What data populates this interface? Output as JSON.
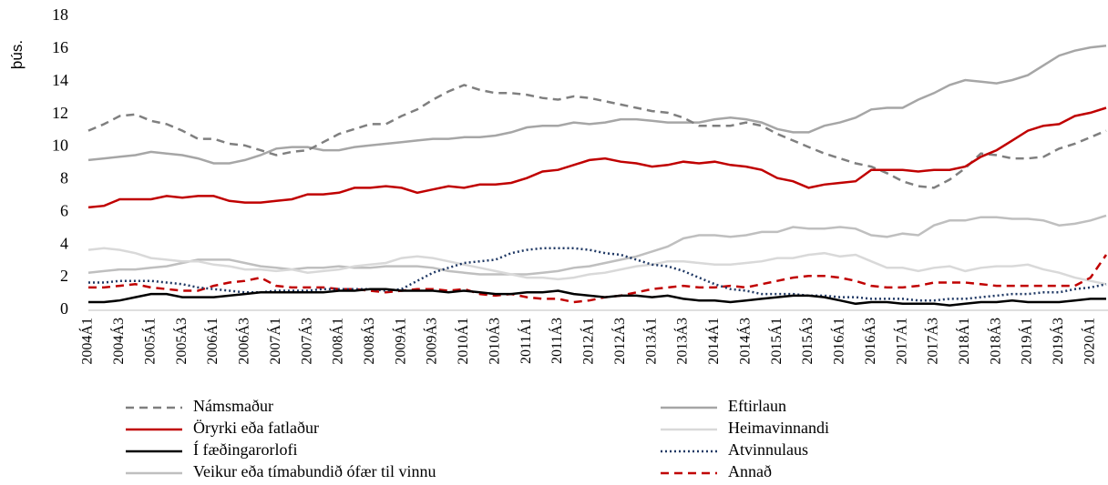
{
  "chart_data": {
    "type": "line",
    "y_label": "þús.",
    "categories": [
      "2004Á1",
      null,
      "2004Á3",
      null,
      "2005Á1",
      null,
      "2005Á3",
      null,
      "2006Á1",
      null,
      "2006Á3",
      null,
      "2007Á1",
      null,
      "2007Á3",
      null,
      "2008Á1",
      null,
      "2008Á3",
      null,
      "2009Á1",
      null,
      "2009Á3",
      null,
      "2010Á1",
      null,
      "2010Á3",
      null,
      "2011Á1",
      null,
      "2011Á3",
      null,
      "2012Á1",
      null,
      "2012Á3",
      null,
      "2013Á1",
      null,
      "2013Á3",
      null,
      "2014Á1",
      null,
      "2014Á3",
      null,
      "2015Á1",
      null,
      "2015Á3",
      null,
      "2016Á1",
      null,
      "2016Á3",
      null,
      "2017Á1",
      null,
      "2017Á3",
      null,
      "2018Á1",
      null,
      "2018Á3",
      null,
      "2019Á1",
      null,
      "2019Á3",
      null,
      "2020Á1",
      null
    ],
    "ylim": [
      0,
      18
    ],
    "yticks": [
      0,
      2,
      4,
      6,
      8,
      10,
      12,
      14,
      16,
      18
    ],
    "grid": false,
    "series": [
      {
        "name": "Námsmaður",
        "color": "#7f7f7f",
        "style": "dashed",
        "values": [
          11.0,
          11.4,
          11.9,
          12.0,
          11.6,
          11.4,
          11.0,
          10.5,
          10.5,
          10.2,
          10.1,
          9.8,
          9.5,
          9.7,
          9.8,
          10.3,
          10.8,
          11.1,
          11.4,
          11.4,
          11.9,
          12.3,
          12.9,
          13.4,
          13.8,
          13.5,
          13.3,
          13.3,
          13.2,
          13.0,
          12.9,
          13.1,
          13.0,
          12.8,
          12.6,
          12.4,
          12.2,
          12.1,
          11.8,
          11.3,
          11.3,
          11.3,
          11.5,
          11.3,
          10.8,
          10.4,
          10.0,
          9.6,
          9.3,
          9.0,
          8.8,
          8.4,
          7.9,
          7.6,
          7.5,
          8.0,
          8.7,
          9.6,
          9.5,
          9.3,
          9.3,
          9.4,
          9.9,
          10.2,
          10.6,
          11.0
        ]
      },
      {
        "name": "Eftirlaun",
        "color": "#a6a6a6",
        "style": "solid",
        "values": [
          9.2,
          9.3,
          9.4,
          9.5,
          9.7,
          9.6,
          9.5,
          9.3,
          9.0,
          9.0,
          9.2,
          9.5,
          9.9,
          10.0,
          10.0,
          9.8,
          9.8,
          10.0,
          10.1,
          10.2,
          10.3,
          10.4,
          10.5,
          10.5,
          10.6,
          10.6,
          10.7,
          10.9,
          11.2,
          11.3,
          11.3,
          11.5,
          11.4,
          11.5,
          11.7,
          11.7,
          11.6,
          11.5,
          11.5,
          11.5,
          11.7,
          11.8,
          11.7,
          11.5,
          11.1,
          10.9,
          10.9,
          11.3,
          11.5,
          11.8,
          12.3,
          12.4,
          12.4,
          12.9,
          13.3,
          13.8,
          14.1,
          14.0,
          13.9,
          14.1,
          14.4,
          15.0,
          15.6,
          15.9,
          16.1,
          16.2
        ]
      },
      {
        "name": "Öryrki eða fatlaður",
        "color": "#c00000",
        "style": "solid",
        "values": [
          6.3,
          6.4,
          6.8,
          6.8,
          6.8,
          7.0,
          6.9,
          7.0,
          7.0,
          6.7,
          6.6,
          6.6,
          6.7,
          6.8,
          7.1,
          7.1,
          7.2,
          7.5,
          7.5,
          7.6,
          7.5,
          7.2,
          7.4,
          7.6,
          7.5,
          7.7,
          7.7,
          7.8,
          8.1,
          8.5,
          8.6,
          8.9,
          9.2,
          9.3,
          9.1,
          9.0,
          8.8,
          8.9,
          9.1,
          9.0,
          9.1,
          8.9,
          8.8,
          8.6,
          8.1,
          7.9,
          7.5,
          7.7,
          7.8,
          7.9,
          8.6,
          8.6,
          8.6,
          8.5,
          8.6,
          8.6,
          8.8,
          9.4,
          9.8,
          10.4,
          11.0,
          11.3,
          11.4,
          11.9,
          12.1,
          12.4
        ]
      },
      {
        "name": "Heimavinnandi",
        "color": "#d9d9d9",
        "style": "solid",
        "values": [
          3.7,
          3.8,
          3.7,
          3.5,
          3.2,
          3.1,
          3.0,
          3.0,
          2.8,
          2.7,
          2.5,
          2.5,
          2.4,
          2.5,
          2.3,
          2.4,
          2.5,
          2.7,
          2.8,
          2.9,
          3.2,
          3.3,
          3.2,
          3.0,
          2.8,
          2.6,
          2.4,
          2.2,
          2.0,
          2.0,
          1.9,
          2.0,
          2.2,
          2.3,
          2.5,
          2.7,
          2.8,
          3.0,
          3.0,
          2.9,
          2.8,
          2.8,
          2.9,
          3.0,
          3.2,
          3.2,
          3.4,
          3.5,
          3.3,
          3.4,
          3.0,
          2.6,
          2.6,
          2.4,
          2.6,
          2.7,
          2.4,
          2.6,
          2.7,
          2.7,
          2.8,
          2.5,
          2.3,
          2.0,
          1.8,
          1.6
        ]
      },
      {
        "name": "Í fæðingarorlofi",
        "color": "#000000",
        "style": "solid",
        "values": [
          0.5,
          0.5,
          0.6,
          0.8,
          1.0,
          1.0,
          0.8,
          0.8,
          0.8,
          0.9,
          1.0,
          1.1,
          1.1,
          1.1,
          1.1,
          1.1,
          1.2,
          1.2,
          1.3,
          1.3,
          1.2,
          1.2,
          1.2,
          1.1,
          1.2,
          1.1,
          1.0,
          1.0,
          1.1,
          1.1,
          1.2,
          1.0,
          0.9,
          0.8,
          0.9,
          0.9,
          0.8,
          0.9,
          0.7,
          0.6,
          0.6,
          0.5,
          0.6,
          0.7,
          0.8,
          0.9,
          0.9,
          0.8,
          0.6,
          0.4,
          0.5,
          0.5,
          0.4,
          0.4,
          0.4,
          0.3,
          0.4,
          0.5,
          0.5,
          0.6,
          0.5,
          0.5,
          0.5,
          0.6,
          0.7,
          0.7
        ]
      },
      {
        "name": "Atvinnulaus",
        "color": "#1f3864",
        "style": "dotted",
        "values": [
          1.7,
          1.7,
          1.8,
          1.8,
          1.8,
          1.7,
          1.6,
          1.4,
          1.3,
          1.2,
          1.1,
          1.1,
          1.2,
          1.2,
          1.2,
          1.3,
          1.3,
          1.3,
          1.3,
          1.2,
          1.3,
          1.8,
          2.3,
          2.6,
          2.9,
          3.0,
          3.1,
          3.5,
          3.7,
          3.8,
          3.8,
          3.8,
          3.7,
          3.5,
          3.4,
          3.1,
          2.8,
          2.7,
          2.4,
          2.0,
          1.6,
          1.3,
          1.2,
          1.0,
          1.0,
          1.0,
          0.9,
          0.9,
          0.8,
          0.8,
          0.7,
          0.7,
          0.7,
          0.6,
          0.6,
          0.7,
          0.7,
          0.8,
          0.9,
          1.0,
          1.0,
          1.1,
          1.1,
          1.3,
          1.4,
          1.6
        ]
      },
      {
        "name": "Veikur eða tímabundið ófær til vinnu",
        "color": "#bfbfbf",
        "style": "solid",
        "values": [
          2.3,
          2.4,
          2.5,
          2.5,
          2.6,
          2.7,
          2.9,
          3.1,
          3.1,
          3.1,
          2.9,
          2.7,
          2.6,
          2.5,
          2.6,
          2.6,
          2.7,
          2.6,
          2.6,
          2.7,
          2.7,
          2.7,
          2.6,
          2.4,
          2.3,
          2.2,
          2.2,
          2.2,
          2.2,
          2.3,
          2.4,
          2.6,
          2.7,
          2.9,
          3.1,
          3.3,
          3.6,
          3.9,
          4.4,
          4.6,
          4.6,
          4.5,
          4.6,
          4.8,
          4.8,
          5.1,
          5.0,
          5.0,
          5.1,
          5.0,
          4.6,
          4.5,
          4.7,
          4.6,
          5.2,
          5.5,
          5.5,
          5.7,
          5.7,
          5.6,
          5.6,
          5.5,
          5.2,
          5.3,
          5.5,
          5.8
        ]
      },
      {
        "name": "Annað",
        "color": "#c00000",
        "style": "dashed",
        "values": [
          1.4,
          1.4,
          1.5,
          1.6,
          1.4,
          1.3,
          1.2,
          1.2,
          1.5,
          1.7,
          1.8,
          2.0,
          1.5,
          1.4,
          1.4,
          1.4,
          1.3,
          1.3,
          1.2,
          1.1,
          1.2,
          1.3,
          1.3,
          1.2,
          1.3,
          1.0,
          0.9,
          1.0,
          0.8,
          0.7,
          0.7,
          0.5,
          0.6,
          0.8,
          0.9,
          1.1,
          1.3,
          1.4,
          1.5,
          1.4,
          1.4,
          1.5,
          1.4,
          1.6,
          1.8,
          2.0,
          2.1,
          2.1,
          2.0,
          1.8,
          1.5,
          1.4,
          1.4,
          1.5,
          1.7,
          1.7,
          1.7,
          1.6,
          1.5,
          1.5,
          1.5,
          1.5,
          1.5,
          1.5,
          2.0,
          3.4
        ]
      }
    ]
  }
}
